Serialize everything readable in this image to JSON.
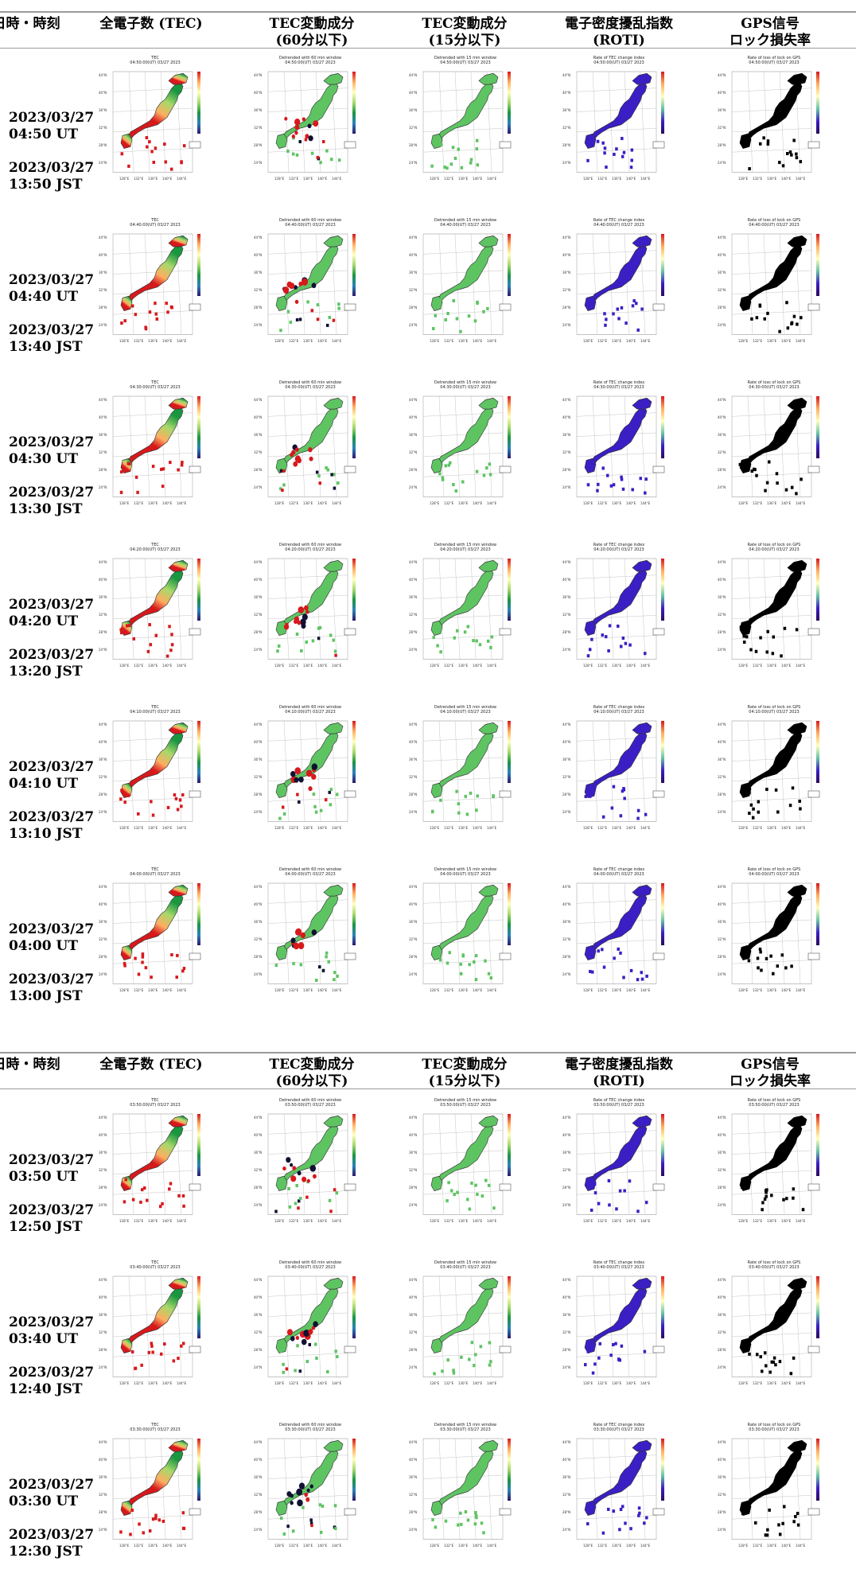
{
  "headers": {
    "datetime": "日時・時刻",
    "tec": "全電子数 (TEC)",
    "dtec60": [
      "TEC変動成分",
      "(60分以下)"
    ],
    "dtec15": [
      "TEC変動成分",
      "(15分以下)"
    ],
    "roti": [
      "電子密度擾乱指数",
      "(ROTI)"
    ],
    "lol": [
      "GPS信号",
      "ロック損失率"
    ]
  },
  "panel_titles": {
    "tec": "TEC",
    "dtec60": "Detrended with 60 min window",
    "dtec15": "Detrended with 15 min window",
    "roti": "Rate of TEC change index",
    "lol": "Rate of loss of lock on GPS"
  },
  "rows": [
    {
      "ut": "2023/03/27 04:50 UT",
      "jst": "2023/03/27 13:50 JST",
      "stamp": "04:50:00(UT) 03/27 2023"
    },
    {
      "ut": "2023/03/27 04:40 UT",
      "jst": "2023/03/27 13:40 JST",
      "stamp": "04:40:00(UT) 03/27 2023"
    },
    {
      "ut": "2023/03/27 04:30 UT",
      "jst": "2023/03/27 13:30 JST",
      "stamp": "04:30:00(UT) 03/27 2023"
    },
    {
      "ut": "2023/03/27 04:20 UT",
      "jst": "2023/03/27 13:20 JST",
      "stamp": "04:20:00(UT) 03/27 2023"
    },
    {
      "ut": "2023/03/27 04:10 UT",
      "jst": "2023/03/27 13:10 JST",
      "stamp": "04:10:00(UT) 03/27 2023"
    },
    {
      "ut": "2023/03/27 04:00 UT",
      "jst": "2023/03/27 13:00 JST",
      "stamp": "04:00:00(UT) 03/27 2023"
    },
    {
      "ut": "2023/03/27 03:50 UT",
      "jst": "2023/03/27 12:50 JST",
      "stamp": "03:50:00(UT) 03/27 2023"
    },
    {
      "ut": "2023/03/27 03:40 UT",
      "jst": "2023/03/27 12:40 JST",
      "stamp": "03:40:00(UT) 03/27 2023"
    },
    {
      "ut": "2023/03/27 03:30 UT",
      "jst": "2023/03/27 12:30 JST",
      "stamp": "03:30:00(UT) 03/27 2023"
    }
  ],
  "map_axes": {
    "lat_labels": [
      "44°N",
      "40°N",
      "36°N",
      "32°N",
      "28°N",
      "24°N"
    ],
    "lon_labels": [
      "128°E",
      "132°E",
      "136°E",
      "140°E",
      "144°E"
    ]
  },
  "colors": {
    "tec": [
      "#d7191c",
      "#fdae61",
      "#a6d96a",
      "#1a9641"
    ],
    "dtec": "#5ec462",
    "roti": "#3b1fc4",
    "lol": "#000000",
    "dark": "#111133"
  }
}
